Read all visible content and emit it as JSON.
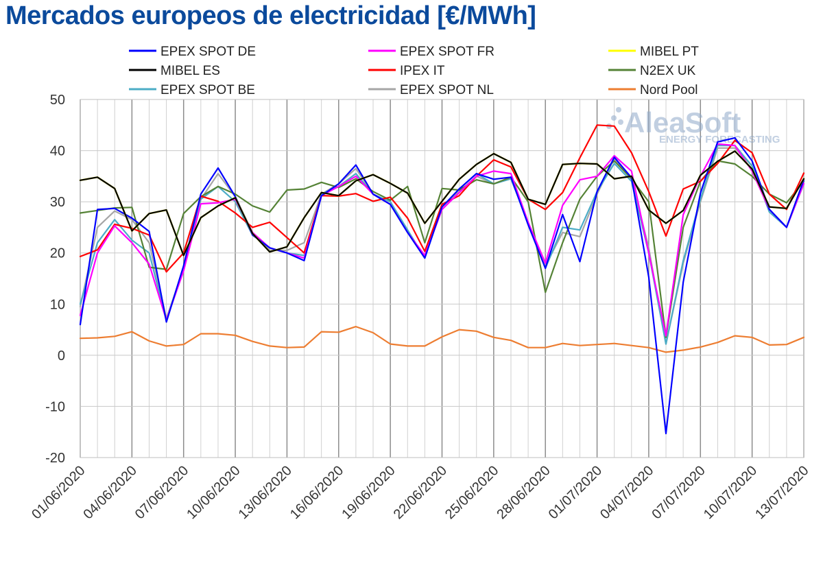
{
  "title": "Mercados europeos de electricidad [€/MWh]",
  "watermark": {
    "brand": "AleaSoft",
    "tagline": "ENERGY FORECASTING"
  },
  "chart_data": {
    "type": "line",
    "title": "Mercados europeos de electricidad [€/MWh]",
    "xlabel": "",
    "ylabel": "",
    "ylim": [
      -20,
      50
    ],
    "yticks": [
      -20,
      -10,
      0,
      10,
      20,
      30,
      40,
      50
    ],
    "grid": true,
    "legend_position": "top",
    "x": [
      "01/06/2020",
      "02/06/2020",
      "03/06/2020",
      "04/06/2020",
      "05/06/2020",
      "06/06/2020",
      "07/06/2020",
      "08/06/2020",
      "09/06/2020",
      "10/06/2020",
      "11/06/2020",
      "12/06/2020",
      "13/06/2020",
      "14/06/2020",
      "15/06/2020",
      "16/06/2020",
      "17/06/2020",
      "18/06/2020",
      "19/06/2020",
      "20/06/2020",
      "21/06/2020",
      "22/06/2020",
      "23/06/2020",
      "24/06/2020",
      "25/06/2020",
      "26/06/2020",
      "27/06/2020",
      "28/06/2020",
      "29/06/2020",
      "30/06/2020",
      "01/07/2020",
      "02/07/2020",
      "03/07/2020",
      "04/07/2020",
      "05/07/2020",
      "06/07/2020",
      "07/07/2020",
      "08/07/2020",
      "09/07/2020",
      "10/07/2020",
      "11/07/2020",
      "12/07/2020",
      "13/07/2020"
    ],
    "xtick_labels": [
      "01/06/2020",
      "04/06/2020",
      "07/06/2020",
      "10/06/2020",
      "13/06/2020",
      "16/06/2020",
      "19/06/2020",
      "22/06/2020",
      "25/06/2020",
      "28/06/2020",
      "01/07/2020",
      "04/07/2020",
      "07/07/2020",
      "10/07/2020",
      "13/07/2020"
    ],
    "series": [
      {
        "name": "Nord Pool",
        "color": "#ed7d31",
        "values": [
          3.3,
          3.4,
          3.7,
          4.6,
          2.8,
          1.8,
          2.1,
          4.2,
          4.2,
          3.9,
          2.7,
          1.8,
          1.5,
          1.6,
          4.6,
          4.5,
          5.6,
          4.4,
          2.2,
          1.8,
          1.8,
          3.6,
          5.0,
          4.7,
          3.5,
          2.9,
          1.5,
          1.5,
          2.3,
          1.9,
          2.1,
          2.3,
          1.9,
          1.5,
          0.6,
          1.0,
          1.6,
          2.5,
          3.8,
          3.5,
          2.0,
          2.1,
          3.5
        ]
      },
      {
        "name": "EPEX SPOT NL",
        "color": "#a6a6a6",
        "values": [
          9.5,
          25.0,
          28.2,
          26.5,
          22.0,
          7.2,
          17.0,
          30.5,
          35.5,
          31.0,
          24.0,
          20.5,
          20.5,
          22.0,
          31.5,
          33.5,
          36.5,
          31.5,
          29.5,
          24.0,
          19.5,
          29.0,
          32.0,
          35.0,
          33.5,
          34.5,
          26.0,
          17.5,
          24.0,
          23.2,
          31.5,
          38.5,
          34.5,
          21.0,
          2.2,
          18.0,
          30.0,
          40.5,
          40.5,
          37.0,
          28.5,
          25.0,
          33.5
        ]
      },
      {
        "name": "EPEX SPOT BE",
        "color": "#4bacc6",
        "values": [
          10.0,
          22.0,
          26.5,
          22.5,
          20.0,
          6.8,
          17.0,
          30.5,
          33.0,
          30.0,
          23.5,
          21.0,
          20.0,
          19.5,
          31.5,
          33.0,
          35.5,
          31.5,
          30.0,
          24.5,
          19.0,
          29.0,
          32.5,
          35.5,
          33.5,
          34.5,
          26.0,
          17.0,
          25.0,
          24.5,
          32.0,
          37.5,
          34.0,
          20.0,
          2.2,
          18.5,
          30.5,
          41.0,
          41.0,
          37.0,
          28.0,
          25.0,
          33.5
        ]
      },
      {
        "name": "N2EX UK",
        "color": "#548235",
        "values": [
          27.8,
          28.3,
          28.8,
          28.9,
          17.2,
          16.8,
          27.7,
          31.0,
          33.0,
          31.5,
          29.2,
          28.0,
          32.3,
          32.5,
          33.8,
          32.8,
          34.5,
          32.0,
          30.3,
          33.0,
          22.0,
          32.6,
          32.3,
          34.3,
          33.5,
          34.8,
          30.0,
          12.3,
          22.0,
          30.5,
          35.0,
          38.0,
          34.5,
          30.0,
          3.5,
          25.0,
          34.0,
          38.0,
          37.4,
          35.0,
          31.5,
          29.8,
          34.0
        ]
      },
      {
        "name": "IPEX IT",
        "color": "#ff0000",
        "values": [
          19.3,
          20.6,
          25.6,
          24.8,
          23.5,
          16.3,
          20.0,
          31.1,
          30.1,
          27.8,
          25.0,
          26.0,
          23.0,
          20.0,
          31.2,
          31.1,
          31.6,
          30.1,
          30.9,
          26.8,
          20.3,
          29.5,
          31.2,
          35.0,
          38.2,
          36.8,
          30.5,
          28.5,
          31.8,
          38.6,
          45.0,
          44.8,
          39.6,
          32.0,
          23.3,
          32.5,
          34.0,
          37.5,
          42.0,
          39.6,
          31.5,
          28.5,
          35.6
        ]
      },
      {
        "name": "EPEX SPOT FR",
        "color": "#ff00ff",
        "values": [
          7.8,
          20.0,
          25.3,
          22.0,
          17.8,
          6.9,
          16.5,
          29.6,
          29.8,
          30.5,
          24.0,
          21.0,
          20.0,
          19.0,
          31.2,
          33.0,
          35.0,
          31.5,
          29.5,
          24.0,
          19.5,
          28.5,
          31.8,
          35.0,
          36.0,
          35.5,
          26.0,
          18.0,
          29.3,
          34.3,
          35.0,
          39.0,
          36.0,
          20.0,
          3.8,
          27.5,
          35.0,
          41.3,
          41.0,
          36.0,
          28.5,
          25.0,
          33.6
        ]
      },
      {
        "name": "EPEX SPOT DE",
        "color": "#0000ff",
        "values": [
          6.0,
          28.5,
          28.7,
          26.8,
          24.2,
          6.5,
          17.5,
          31.5,
          36.6,
          31.0,
          23.5,
          21.0,
          20.0,
          18.5,
          31.2,
          33.5,
          37.2,
          31.5,
          29.5,
          24.0,
          19.0,
          29.0,
          32.5,
          35.5,
          34.4,
          34.8,
          25.5,
          17.0,
          27.5,
          18.3,
          32.0,
          38.7,
          34.7,
          15.3,
          -15.3,
          14.3,
          31.7,
          41.7,
          42.5,
          38.0,
          28.5,
          25.0,
          34.3
        ]
      },
      {
        "name": "MIBEL PT",
        "color": "#ffff00",
        "values": [
          34.2,
          34.8,
          32.6,
          24.3,
          27.7,
          28.4,
          19.5,
          26.9,
          29.2,
          30.8,
          23.8,
          20.2,
          21.2,
          26.9,
          31.8,
          31.2,
          34.1,
          35.3,
          33.6,
          31.7,
          25.8,
          30.1,
          34.4,
          37.3,
          39.4,
          37.7,
          30.5,
          29.5,
          37.3,
          37.5,
          37.4,
          34.5,
          35.0,
          28.4,
          25.8,
          28.3,
          35.2,
          37.9,
          39.9,
          36.4,
          29.0,
          28.7,
          34.5
        ]
      },
      {
        "name": "MIBEL ES",
        "color": "#000000",
        "values": [
          34.2,
          34.8,
          32.6,
          24.3,
          27.7,
          28.4,
          19.5,
          26.9,
          29.2,
          30.8,
          23.8,
          20.2,
          21.2,
          26.9,
          31.8,
          31.2,
          34.1,
          35.3,
          33.6,
          31.7,
          25.8,
          30.1,
          34.4,
          37.3,
          39.4,
          37.7,
          30.5,
          29.5,
          37.3,
          37.5,
          37.4,
          34.5,
          35.0,
          28.4,
          25.8,
          28.3,
          35.2,
          37.9,
          39.9,
          36.4,
          29.0,
          28.7,
          34.5
        ]
      }
    ],
    "legend": [
      [
        "EPEX SPOT DE",
        "EPEX SPOT FR",
        "MIBEL PT"
      ],
      [
        "MIBEL ES",
        "IPEX IT",
        "N2EX UK"
      ],
      [
        "EPEX SPOT BE",
        "EPEX SPOT NL",
        "Nord Pool"
      ]
    ]
  }
}
